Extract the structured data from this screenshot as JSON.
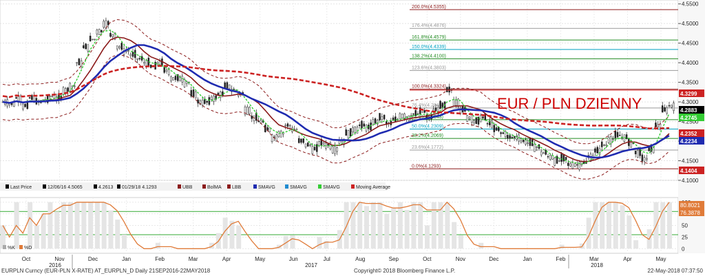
{
  "window": {
    "footer_left": "EURPLN Curncy (EUR-PLN X-RATE) AT_EURPLN_D  Daily 21SEP2016-22MAY2018",
    "footer_center": "Copyright© 2018 Bloomberg Finance L.P.",
    "footer_right": "22-May-2018 07:37:50"
  },
  "chart_data": [
    {
      "type": "line",
      "title": "EUR / PLN DZIENNY",
      "title_color": "#cc0000",
      "ylim": [
        4.1,
        4.56
      ],
      "y_ticks": [
        4.1,
        4.15,
        4.2,
        4.25,
        4.3,
        4.35,
        4.4,
        4.45,
        4.5,
        4.55
      ],
      "y_tick_labels": [
        "4.1000",
        "4.1500",
        "4.2000",
        "4.2500",
        "4.3000",
        "4.3500",
        "4.4000",
        "4.4500",
        "4.5000",
        "4.5500"
      ],
      "x_month_labels": [
        "Oct",
        "Nov",
        "Dec",
        "Jan",
        "Feb",
        "Mar",
        "Apr",
        "May",
        "Jun",
        "Jul",
        "Aug",
        "Sep",
        "Oct",
        "Nov",
        "Dec",
        "Jan",
        "Feb",
        "Mar",
        "Apr",
        "May"
      ],
      "x_year_labels": [
        "2016",
        "2017",
        "2018"
      ],
      "price_marker": {
        "label": "4.3299",
        "value": 4.3299,
        "color": "#cc2222"
      },
      "last_values": [
        {
          "label": "4.2883",
          "value": 4.2883,
          "color": "#000000"
        },
        {
          "label": "4.2745",
          "value": 4.2745,
          "color": "#33cc33"
        },
        {
          "label": "4.2352",
          "value": 4.2352,
          "color": "#cc2222"
        },
        {
          "label": "4.2234",
          "value": 4.2234,
          "color": "#1f2bb0"
        },
        {
          "label": "4.1404",
          "value": 4.1404,
          "color": "#cc2222"
        }
      ],
      "fibonacci": [
        {
          "label": "200.0%(4.5355)",
          "value": 4.5355,
          "color": "#8b1a1a"
        },
        {
          "label": "176.4%(4.4876)",
          "value": 4.4876,
          "color": "#999999"
        },
        {
          "label": "161.8%(4.4579)",
          "value": 4.4579,
          "color": "#228b22"
        },
        {
          "label": "150.0%(4.4339)",
          "value": 4.4339,
          "color": "#00a0c0"
        },
        {
          "label": "138.2%(4.4100)",
          "value": 4.41,
          "color": "#228b22"
        },
        {
          "label": "123.6%(4.3803)",
          "value": 4.3803,
          "color": "#999999"
        },
        {
          "label": "100.0%(4.3324)",
          "value": 4.3324,
          "color": "#8b1a1a"
        },
        {
          "label": "76.4%(4.2845)",
          "value": 4.2845,
          "color": "#999999"
        },
        {
          "label": "61.8%(4.2548)",
          "value": 4.2548,
          "color": "#228b22"
        },
        {
          "label": "50.0%(4.2309)",
          "value": 4.2309,
          "color": "#00a0c0"
        },
        {
          "label": "38.2%(4.2069)",
          "value": 4.2069,
          "color": "#228b22"
        },
        {
          "label": "23.6%(4.1772)",
          "value": 4.1772,
          "color": "#999999"
        },
        {
          "label": "0.0%(4.1293)",
          "value": 4.1293,
          "color": "#8b1a1a"
        }
      ],
      "legend": [
        {
          "label": "Last Price",
          "color": "#000000"
        },
        {
          "label": "12/06/16 4.5065",
          "color": "#000000"
        },
        {
          "label": "4.2613",
          "color": "#000000"
        },
        {
          "label": "01/29/18 4.1293",
          "color": "#000000"
        },
        {
          "label": "UBB",
          "color": "#8b1a1a"
        },
        {
          "label": "BolMA",
          "color": "#8b1a1a"
        },
        {
          "label": "LBB",
          "color": "#8b1a1a"
        },
        {
          "label": "SMAVG",
          "color": "#1f2bb0"
        },
        {
          "label": "SMAVG",
          "color": "#1f8bd0"
        },
        {
          "label": "SMAVG",
          "color": "#33cc33"
        },
        {
          "label": "Moving Average",
          "color": "#cc2222"
        }
      ],
      "close_series": [
        4.3,
        4.295,
        4.31,
        4.29,
        4.31,
        4.3,
        4.305,
        4.315,
        4.31,
        4.33,
        4.34,
        4.4,
        4.44,
        4.46,
        4.48,
        4.5,
        4.47,
        4.44,
        4.43,
        4.42,
        4.41,
        4.4,
        4.39,
        4.4,
        4.38,
        4.36,
        4.36,
        4.35,
        4.32,
        4.3,
        4.3,
        4.31,
        4.32,
        4.34,
        4.33,
        4.32,
        4.28,
        4.26,
        4.25,
        4.23,
        4.21,
        4.22,
        4.24,
        4.23,
        4.2,
        4.19,
        4.18,
        4.195,
        4.19,
        4.18,
        4.2,
        4.22,
        4.23,
        4.24,
        4.235,
        4.25,
        4.26,
        4.245,
        4.255,
        4.265,
        4.26,
        4.27,
        4.275,
        4.26,
        4.28,
        4.29,
        4.33,
        4.3,
        4.28,
        4.26,
        4.25,
        4.26,
        4.245,
        4.23,
        4.22,
        4.21,
        4.21,
        4.2,
        4.195,
        4.185,
        4.17,
        4.16,
        4.15,
        4.155,
        4.14,
        4.14,
        4.145,
        4.16,
        4.175,
        4.19,
        4.205,
        4.215,
        4.21,
        4.195,
        4.17,
        4.155,
        4.18,
        4.24,
        4.28,
        4.29
      ]
    },
    {
      "type": "line",
      "ylim": [
        -10,
        110
      ],
      "y_ticks": [
        0,
        25,
        50,
        75,
        100
      ],
      "y_tick_labels": [
        "0",
        "25",
        "50",
        "75",
        "100"
      ],
      "reference_lines": [
        80,
        30
      ],
      "last_values": [
        {
          "label": "80.8021",
          "value": 80.8021,
          "color": "#e07b39"
        },
        {
          "label": "76.3878",
          "value": 76.3878,
          "color": "#e07b39"
        }
      ],
      "legend": [
        {
          "label": "%K",
          "color": "#aaaaaa"
        },
        {
          "label": "%D",
          "color": "#e07b39"
        }
      ]
    }
  ]
}
